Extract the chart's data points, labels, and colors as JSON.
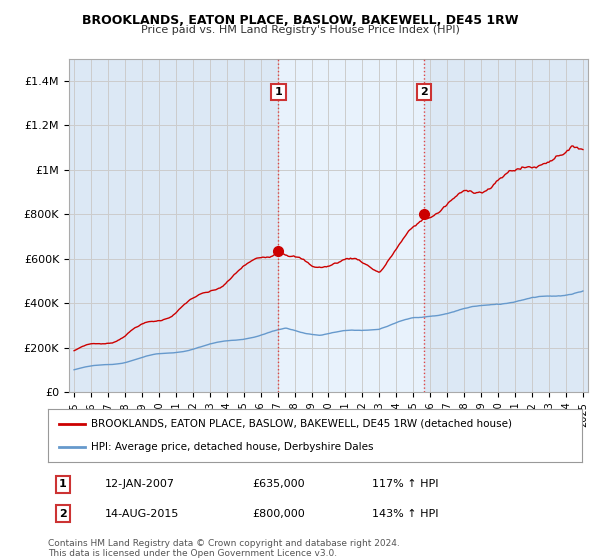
{
  "title": "BROOKLANDS, EATON PLACE, BASLOW, BAKEWELL, DE45 1RW",
  "subtitle": "Price paid vs. HM Land Registry's House Price Index (HPI)",
  "ylabel_ticks": [
    "£0",
    "£200K",
    "£400K",
    "£600K",
    "£800K",
    "£1M",
    "£1.2M",
    "£1.4M"
  ],
  "ytick_values": [
    0,
    200000,
    400000,
    600000,
    800000,
    1000000,
    1200000,
    1400000
  ],
  "ylim": [
    0,
    1500000
  ],
  "xlim_start": 1994.7,
  "xlim_end": 2025.3,
  "xtick_years": [
    1995,
    1996,
    1997,
    1998,
    1999,
    2000,
    2001,
    2002,
    2003,
    2004,
    2005,
    2006,
    2007,
    2008,
    2009,
    2010,
    2011,
    2012,
    2013,
    2014,
    2015,
    2016,
    2017,
    2018,
    2019,
    2020,
    2021,
    2022,
    2023,
    2024,
    2025
  ],
  "grid_color": "#cccccc",
  "red_line_color": "#cc0000",
  "blue_line_color": "#6699cc",
  "marker1_x": 2007.04,
  "marker1_y": 635000,
  "marker1_label": "1",
  "marker1_date": "12-JAN-2007",
  "marker1_price": "£635,000",
  "marker1_hpi": "117% ↑ HPI",
  "marker2_x": 2015.62,
  "marker2_y": 800000,
  "marker2_label": "2",
  "marker2_date": "14-AUG-2015",
  "marker2_price": "£800,000",
  "marker2_hpi": "143% ↑ HPI",
  "vline_color": "#dd4444",
  "legend_red_label": "BROOKLANDS, EATON PLACE, BASLOW, BAKEWELL, DE45 1RW (detached house)",
  "legend_blue_label": "HPI: Average price, detached house, Derbyshire Dales",
  "footnote": "Contains HM Land Registry data © Crown copyright and database right 2024.\nThis data is licensed under the Open Government Licence v3.0.",
  "background_color": "#ffffff",
  "plot_bg_color": "#dce8f5",
  "band_color": "#e8f2fc",
  "marker_box_edge": "#cc3333"
}
